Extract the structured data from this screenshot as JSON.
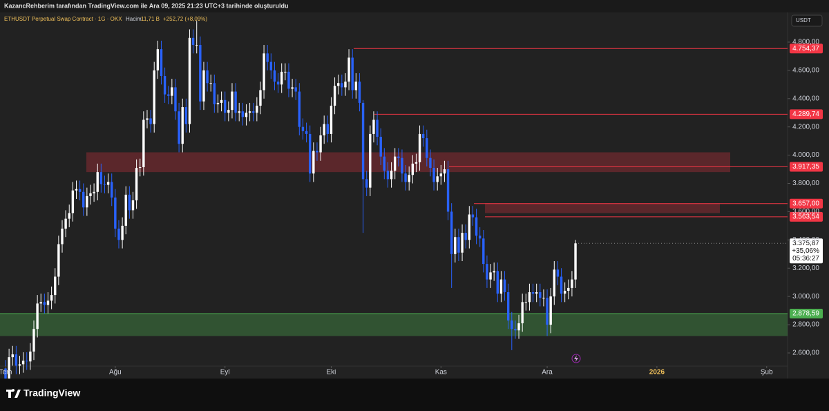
{
  "header": {
    "attribution": "KazancRehberim tarafından TradingView.com ile Ara 09, 2025 21:23 UTC+3 tarihinde oluşturuldu",
    "brand": "TradingView"
  },
  "chart_data": {
    "type": "candlestick",
    "title": "ETHUSDT Perpetual Swap Contract · 1G · OKX",
    "volume_label": "Hacim",
    "volume": "11,71 B",
    "change": "+252,72 (+8,09%)",
    "currency": "USDT",
    "up_color": "#ffffff",
    "down_color": "#2962ff",
    "xlim": [
      -1.56,
      220.9
    ],
    "ylim": [
      2507,
      5010
    ],
    "xticks": [
      {
        "value": 0,
        "label": "Tem"
      },
      {
        "value": 31,
        "label": "Ağu"
      },
      {
        "value": 62,
        "label": "Eyl"
      },
      {
        "value": 92,
        "label": "Eki"
      },
      {
        "value": 123,
        "label": "Kas"
      },
      {
        "value": 153,
        "label": "Ara"
      },
      {
        "value": 184,
        "label": "2026"
      },
      {
        "value": 215,
        "label": "Şub"
      }
    ],
    "yticks": [
      {
        "value": 2600,
        "label": "2.600,00"
      },
      {
        "value": 2800,
        "label": "2.800,00"
      },
      {
        "value": 3000,
        "label": "3.000,00"
      },
      {
        "value": 3200,
        "label": "3.200,00"
      },
      {
        "value": 3400,
        "label": "3.400,00"
      },
      {
        "value": 3600,
        "label": "3.600,00"
      },
      {
        "value": 3800,
        "label": "3.800,00"
      },
      {
        "value": 4000,
        "label": "4.000,00"
      },
      {
        "value": 4200,
        "label": "4.200,00"
      },
      {
        "value": 4400,
        "label": "4.400,00"
      },
      {
        "value": 4600,
        "label": "4.600,00"
      },
      {
        "value": 4800,
        "label": "4.800,00"
      }
    ],
    "series": [
      {
        "name": "ETHUSDT",
        "open": [
          2490,
          2410,
          2570,
          2590,
          2510,
          2520,
          2545,
          2540,
          2610,
          2770,
          2950,
          2960,
          2940,
          2970,
          3010,
          3140,
          3370,
          3480,
          3550,
          3590,
          3750,
          3760,
          3740,
          3630,
          3710,
          3730,
          3740,
          3880,
          3795,
          3790,
          3810,
          3700,
          3480,
          3400,
          3500,
          3720,
          3610,
          3680,
          3910,
          3915,
          4250,
          4260,
          4220,
          4600,
          4750,
          4560,
          4430,
          4420,
          4480,
          4310,
          4080,
          4340,
          4220,
          4830,
          4780,
          4780,
          4380,
          4600,
          4510,
          4510,
          4360,
          4370,
          4390,
          4300,
          4320,
          4450,
          4300,
          4310,
          4270,
          4300,
          4310,
          4300,
          4350,
          4460,
          4720,
          4660,
          4600,
          4520,
          4500,
          4590,
          4590,
          4470,
          4480,
          4450,
          4200,
          4170,
          4150,
          3870,
          4030,
          4020,
          4140,
          4220,
          4150,
          4350,
          4490,
          4510,
          4480,
          4520,
          4690,
          4460,
          4520,
          4370,
          3830,
          3770,
          4150,
          4250,
          4130,
          3990,
          3890,
          3830,
          3890,
          3990,
          3980,
          3870,
          3810,
          3860,
          3940,
          3950,
          4150,
          4120,
          3980,
          3910,
          3810,
          3850,
          3870,
          3900,
          3600,
          3300,
          3420,
          3310,
          3450,
          3400,
          3580,
          3560,
          3430,
          3410,
          3230,
          3120,
          3170,
          3180,
          3020,
          3120,
          3030,
          2830,
          2770,
          2760,
          2810,
          2960,
          2960,
          3030,
          3020,
          3030,
          2990,
          2990,
          2800,
          3000,
          3190,
          3140,
          3020,
          3040,
          3060,
          3120
        ],
        "high": [
          2550,
          2630,
          2650,
          2650,
          2580,
          2605,
          2605,
          2670,
          2830,
          3010,
          3020,
          3020,
          3030,
          3070,
          3200,
          3430,
          3540,
          3610,
          3650,
          3810,
          3820,
          3820,
          3800,
          3770,
          3790,
          3800,
          3940,
          3940,
          3855,
          3870,
          3870,
          3760,
          3540,
          3560,
          3780,
          3780,
          3740,
          3970,
          3975,
          4310,
          4320,
          4320,
          4660,
          4810,
          4810,
          4620,
          4490,
          4540,
          4540,
          4370,
          4400,
          4400,
          4890,
          4890,
          4950,
          4840,
          4660,
          4660,
          4570,
          4570,
          4430,
          4450,
          4450,
          4380,
          4510,
          4510,
          4370,
          4370,
          4360,
          4370,
          4370,
          4410,
          4520,
          4780,
          4780,
          4720,
          4660,
          4580,
          4650,
          4650,
          4650,
          4540,
          4540,
          4510,
          4260,
          4230,
          4210,
          4090,
          4090,
          4200,
          4280,
          4280,
          4410,
          4550,
          4570,
          4570,
          4580,
          4750,
          4750,
          4580,
          4580,
          4390,
          3890,
          4210,
          4310,
          4310,
          4190,
          4050,
          3950,
          3950,
          4050,
          4050,
          4040,
          3930,
          3920,
          4000,
          4010,
          4210,
          4210,
          4180,
          4040,
          3970,
          3910,
          3930,
          3960,
          3960,
          3660,
          3480,
          3480,
          3510,
          3510,
          3640,
          3640,
          3620,
          3490,
          3470,
          3290,
          3230,
          3240,
          3240,
          3180,
          3180,
          3090,
          2890,
          2830,
          2870,
          3020,
          3020,
          3090,
          3090,
          3090,
          3090,
          3050,
          3050,
          3060,
          3250,
          3250,
          3200,
          3100,
          3120,
          3180,
          3400
        ],
        "low": [
          2350,
          2350,
          2510,
          2450,
          2450,
          2460,
          2480,
          2480,
          2550,
          2710,
          2890,
          2880,
          2880,
          2910,
          2950,
          3080,
          3310,
          3420,
          3490,
          3530,
          3690,
          3680,
          3570,
          3570,
          3650,
          3670,
          3680,
          3735,
          3730,
          3730,
          3640,
          3420,
          3340,
          3340,
          3440,
          3550,
          3550,
          3620,
          3850,
          3855,
          4190,
          4160,
          4160,
          4540,
          4500,
          4370,
          4360,
          4360,
          4250,
          4020,
          4020,
          4160,
          4160,
          4720,
          4720,
          4320,
          4320,
          4450,
          4450,
          4300,
          4300,
          4310,
          4240,
          4240,
          4260,
          4240,
          4240,
          4210,
          4210,
          4240,
          4240,
          4240,
          4290,
          4400,
          4600,
          4540,
          4460,
          4440,
          4440,
          4530,
          4410,
          4410,
          4390,
          4140,
          4110,
          4090,
          3810,
          3810,
          3960,
          3960,
          4080,
          4090,
          4090,
          4290,
          4430,
          4420,
          4420,
          4460,
          4400,
          4400,
          4310,
          3450,
          3710,
          3710,
          4090,
          4070,
          3930,
          3830,
          3770,
          3770,
          3830,
          3920,
          3810,
          3750,
          3750,
          3800,
          3880,
          3890,
          4060,
          3920,
          3850,
          3750,
          3750,
          3790,
          3810,
          3540,
          3060,
          3240,
          3250,
          3250,
          3340,
          3340,
          3500,
          3370,
          3350,
          3170,
          3060,
          3060,
          3110,
          2960,
          2960,
          2970,
          2770,
          2620,
          2700,
          2700,
          2750,
          2900,
          2900,
          2960,
          2960,
          2930,
          2930,
          2720,
          2740,
          2940,
          3080,
          2960,
          2960,
          2980,
          3000,
          3060
        ],
        "close": [
          2410,
          2570,
          2590,
          2510,
          2520,
          2545,
          2540,
          2610,
          2770,
          2950,
          2960,
          2940,
          2970,
          3010,
          3140,
          3370,
          3480,
          3550,
          3590,
          3750,
          3760,
          3740,
          3630,
          3710,
          3730,
          3740,
          3880,
          3795,
          3790,
          3810,
          3700,
          3480,
          3400,
          3500,
          3720,
          3610,
          3680,
          3910,
          3915,
          4250,
          4260,
          4220,
          4600,
          4750,
          4560,
          4430,
          4420,
          4480,
          4310,
          4080,
          4340,
          4220,
          4830,
          4780,
          4780,
          4380,
          4600,
          4510,
          4510,
          4360,
          4370,
          4390,
          4300,
          4320,
          4450,
          4300,
          4310,
          4270,
          4300,
          4310,
          4300,
          4350,
          4460,
          4720,
          4660,
          4600,
          4520,
          4500,
          4590,
          4590,
          4470,
          4480,
          4450,
          4200,
          4170,
          4150,
          3870,
          4030,
          4020,
          4140,
          4220,
          4150,
          4350,
          4490,
          4510,
          4480,
          4520,
          4690,
          4460,
          4520,
          4370,
          3830,
          3770,
          4150,
          4250,
          4130,
          3990,
          3890,
          3830,
          3890,
          3990,
          3980,
          3870,
          3810,
          3860,
          3940,
          3950,
          4150,
          4120,
          3980,
          3910,
          3810,
          3850,
          3870,
          3900,
          3600,
          3300,
          3420,
          3310,
          3450,
          3400,
          3580,
          3560,
          3430,
          3410,
          3230,
          3120,
          3170,
          3180,
          3020,
          3120,
          3030,
          2830,
          2770,
          2760,
          2810,
          2960,
          2960,
          3030,
          3020,
          3030,
          2990,
          2990,
          2800,
          3000,
          3190,
          3140,
          3020,
          3040,
          3060,
          3120,
          3375.87
        ]
      }
    ],
    "levels": [
      {
        "value": 4754.37,
        "label": "4.754,37",
        "color": "#f23645"
      },
      {
        "value": 4289.74,
        "label": "4.289,74",
        "color": "#f23645"
      },
      {
        "value": 3917.35,
        "label": "3.917,35",
        "color": "#f23645"
      },
      {
        "value": 3657,
        "label": "3.657,00",
        "color": "#f23645"
      },
      {
        "value": 3563.54,
        "label": "3.563,54",
        "color": "#f23645"
      },
      {
        "value": 2878.59,
        "label": "2.878,59",
        "color": "#4caf50"
      }
    ],
    "zones": [
      {
        "from": 3880,
        "to": 4020,
        "color": "rgba(242,54,69,0.28)"
      },
      {
        "from": 3590,
        "to": 3660,
        "color": "rgba(242,54,69,0.28)"
      },
      {
        "from": 2720,
        "to": 2878.59,
        "color": "rgba(76,175,80,0.35)"
      }
    ],
    "last_price": {
      "value": 3375.87,
      "label": "3.375,87",
      "change": "+35,06%",
      "countdown": "05:36:27"
    }
  }
}
